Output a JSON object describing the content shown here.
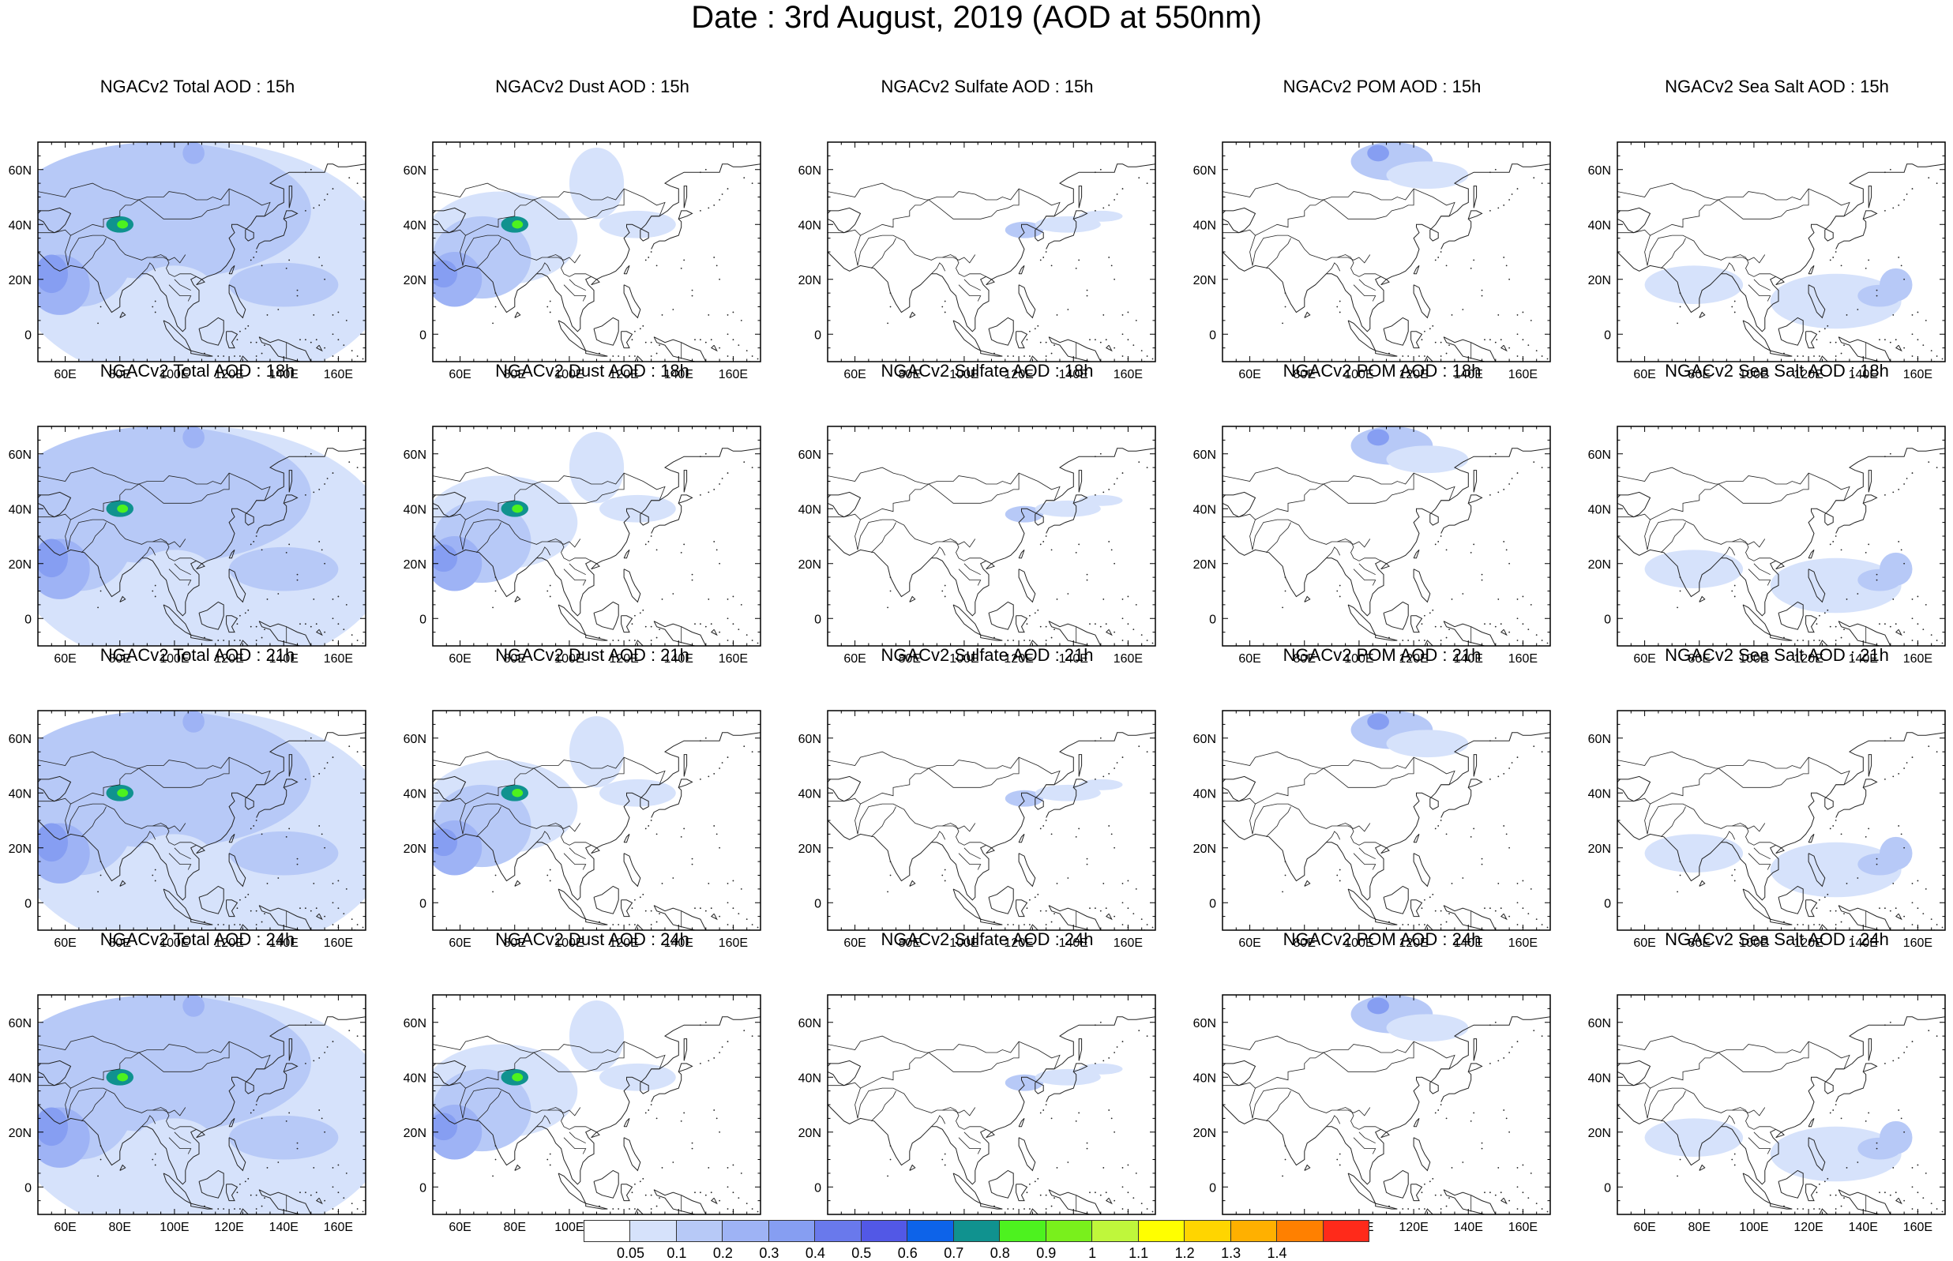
{
  "title": "Date : 3rd August, 2019 (AOD at 550nm)",
  "colors": {
    "coast": "#222222",
    "frame": "#000000",
    "levels": [
      "#ffffff",
      "#d6e2fb",
      "#b7c9f7",
      "#9eb3f5",
      "#869ef2",
      "#6979ec",
      "#5258e6",
      "#0d63e9",
      "#10928f",
      "#4df21f",
      "#79f01c",
      "#bff73b",
      "#ffff00",
      "#ffd500",
      "#ffb000",
      "#ff8000",
      "#ff2a1a"
    ]
  },
  "axes": {
    "x_ticks": [
      "60E",
      "80E",
      "100E",
      "120E",
      "140E",
      "160E"
    ],
    "y_ticks": [
      "60N",
      "40N",
      "20N",
      "0"
    ]
  },
  "rows": [
    {
      "hour": "15h",
      "panels": [
        {
          "species": "total",
          "title": "NGACv2 Total AOD : 15h"
        },
        {
          "species": "dust",
          "title": "NGACv2 Dust AOD : 15h"
        },
        {
          "species": "sulfate",
          "title": "NGACv2 Sulfate AOD : 15h"
        },
        {
          "species": "pom",
          "title": "NGACv2 POM AOD : 15h"
        },
        {
          "species": "seasalt",
          "title": "NGACv2 Sea Salt AOD : 15h"
        }
      ]
    },
    {
      "hour": "18h",
      "panels": [
        {
          "species": "total",
          "title": "NGACv2 Total AOD : 18h"
        },
        {
          "species": "dust",
          "title": "NGACv2 Dust AOD : 18h"
        },
        {
          "species": "sulfate",
          "title": "NGACv2 Sulfate AOD : 18h"
        },
        {
          "species": "pom",
          "title": "NGACv2 POM AOD : 18h"
        },
        {
          "species": "seasalt",
          "title": "NGACv2 Sea Salt AOD : 18h"
        }
      ]
    },
    {
      "hour": "21h",
      "panels": [
        {
          "species": "total",
          "title": "NGACv2 Total AOD : 21h"
        },
        {
          "species": "dust",
          "title": "NGACv2 Dust AOD : 21h"
        },
        {
          "species": "sulfate",
          "title": "NGACv2 Sulfate AOD : 21h"
        },
        {
          "species": "pom",
          "title": "NGACv2 POM AOD : 21h"
        },
        {
          "species": "seasalt",
          "title": "NGACv2 Sea Salt AOD : 21h"
        }
      ]
    },
    {
      "hour": "24h",
      "panels": [
        {
          "species": "total",
          "title": "NGACv2 Total AOD : 24h"
        },
        {
          "species": "dust",
          "title": "NGACv2 Dust AOD : 24h"
        },
        {
          "species": "sulfate",
          "title": "NGACv2 Sulfate AOD : 24h"
        },
        {
          "species": "pom",
          "title": "NGACv2 POM AOD : 24h"
        },
        {
          "species": "seasalt",
          "title": "NGACv2 Sea Salt  AOD : 24h"
        }
      ]
    }
  ],
  "colorbar": {
    "labels": [
      "0.05",
      "0.1",
      "0.2",
      "0.3",
      "0.4",
      "0.5",
      "0.6",
      "0.7",
      "0.8",
      "0.9",
      "1",
      "1.1",
      "1.2",
      "1.3",
      "1.4"
    ]
  }
}
